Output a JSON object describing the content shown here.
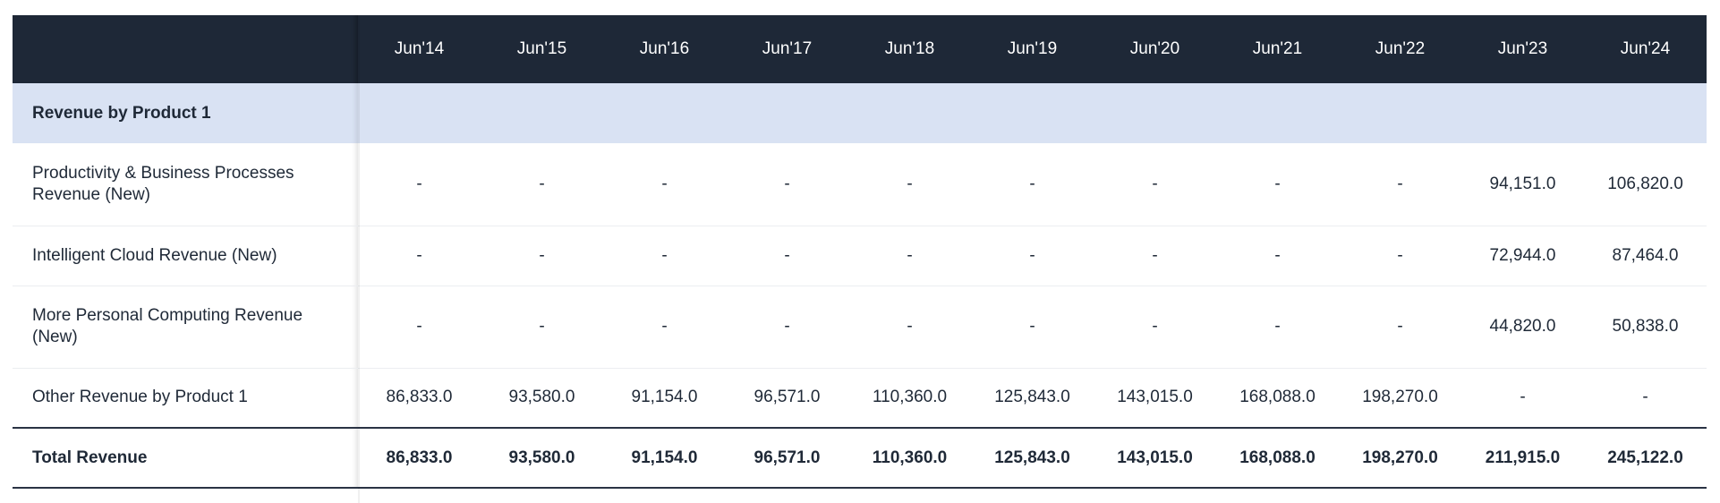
{
  "table": {
    "columns": [
      "Jun'14",
      "Jun'15",
      "Jun'16",
      "Jun'17",
      "Jun'18",
      "Jun'19",
      "Jun'20",
      "Jun'21",
      "Jun'22",
      "Jun'23",
      "Jun'24"
    ],
    "section_title": "Revenue by Product 1",
    "rows": [
      {
        "label": "Productivity & Business Processes Revenue (New)",
        "values": [
          "-",
          "-",
          "-",
          "-",
          "-",
          "-",
          "-",
          "-",
          "-",
          "94,151.0",
          "106,820.0"
        ]
      },
      {
        "label": "Intelligent Cloud Revenue (New)",
        "values": [
          "-",
          "-",
          "-",
          "-",
          "-",
          "-",
          "-",
          "-",
          "-",
          "72,944.0",
          "87,464.0"
        ]
      },
      {
        "label": "More Personal Computing Revenue (New)",
        "values": [
          "-",
          "-",
          "-",
          "-",
          "-",
          "-",
          "-",
          "-",
          "-",
          "44,820.0",
          "50,838.0"
        ]
      },
      {
        "label": "Other Revenue by Product 1",
        "values": [
          "86,833.0",
          "93,580.0",
          "91,154.0",
          "96,571.0",
          "110,360.0",
          "125,843.0",
          "143,015.0",
          "168,088.0",
          "198,270.0",
          "-",
          "-"
        ]
      }
    ],
    "total": {
      "label": "Total Revenue",
      "values": [
        "86,833.0",
        "93,580.0",
        "91,154.0",
        "96,571.0",
        "110,360.0",
        "125,843.0",
        "143,015.0",
        "168,088.0",
        "198,270.0",
        "211,915.0",
        "245,122.0"
      ]
    }
  }
}
